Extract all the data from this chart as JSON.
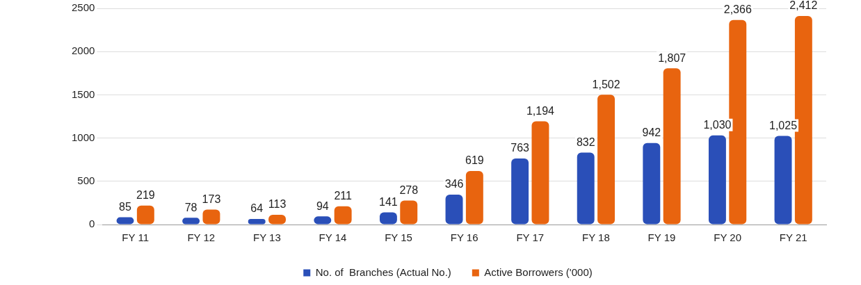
{
  "chart_data": {
    "type": "bar",
    "categories": [
      "FY 11",
      "FY 12",
      "FY 13",
      "FY 14",
      "FY 15",
      "FY 16",
      "FY 17",
      "FY 18",
      "FY 19",
      "FY 20",
      "FY 21"
    ],
    "series": [
      {
        "name": "No. of  Branches (Actual No.)",
        "color": "#2a4fb8",
        "values": [
          85,
          78,
          64,
          94,
          141,
          346,
          763,
          832,
          942,
          1030,
          1025
        ],
        "value_labels": [
          "85",
          "78",
          "64",
          "94",
          "141",
          "346",
          "763",
          "832",
          "942",
          "1,030",
          "1,025"
        ]
      },
      {
        "name": "Active Borrowers ('000)",
        "color": "#e8640f",
        "values": [
          219,
          173,
          113,
          211,
          278,
          619,
          1194,
          1502,
          1807,
          2366,
          2412
        ],
        "value_labels": [
          "219",
          "173",
          "113",
          "211",
          "278",
          "619",
          "1,194",
          "1,502",
          "1,807",
          "2,366",
          "2,412"
        ]
      }
    ],
    "ylim": [
      0,
      2500
    ],
    "yticks": [
      0,
      500,
      1000,
      1500,
      2000,
      2500
    ],
    "grid": "y",
    "legend": "bottom"
  }
}
